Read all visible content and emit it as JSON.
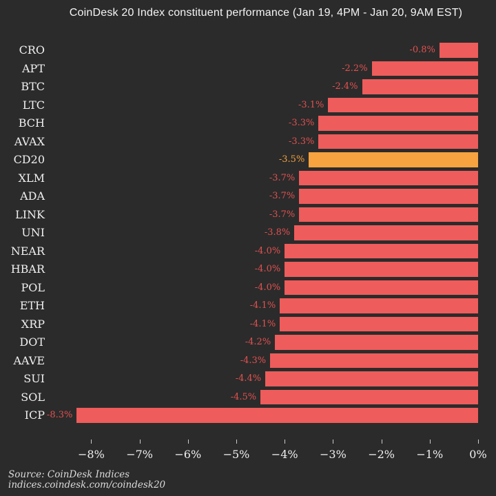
{
  "title": "CoinDesk 20 Index constituent performance (Jan 19, 4PM - Jan 20, 9AM EST)",
  "footer": {
    "source": "Source: CoinDesk Indices",
    "url": "indices.coindesk.com/coindesk20"
  },
  "colors": {
    "background": "#2b2b2b",
    "bar": "#ee5c5b",
    "highlight_bar": "#f6a340",
    "value_label": "#e25150",
    "highlight_value_label": "#f3a13e",
    "text": "#f0f0f0",
    "tick": "#cccccc",
    "footer_text": "#dcdcdc"
  },
  "chart_data": {
    "type": "bar",
    "orientation": "horizontal",
    "title": "CoinDesk 20 Index constituent performance (Jan 19, 4PM - Jan 20, 9AM EST)",
    "categories": [
      "CRO",
      "APT",
      "BTC",
      "LTC",
      "BCH",
      "AVAX",
      "CD20",
      "XLM",
      "ADA",
      "LINK",
      "UNI",
      "NEAR",
      "HBAR",
      "POL",
      "ETH",
      "XRP",
      "DOT",
      "AAVE",
      "SUI",
      "SOL",
      "ICP"
    ],
    "values": [
      -0.8,
      -2.2,
      -2.4,
      -3.1,
      -3.3,
      -3.3,
      -3.5,
      -3.7,
      -3.7,
      -3.7,
      -3.8,
      -4.0,
      -4.0,
      -4.0,
      -4.1,
      -4.1,
      -4.2,
      -4.3,
      -4.4,
      -4.5,
      -8.3
    ],
    "value_labels": [
      "-0.8%",
      "-2.2%",
      "-2.4%",
      "-3.1%",
      "-3.3%",
      "-3.3%",
      "-3.5%",
      "-3.7%",
      "-3.7%",
      "-3.7%",
      "-3.8%",
      "-4.0%",
      "-4.0%",
      "-4.0%",
      "-4.1%",
      "-4.1%",
      "-4.2%",
      "-4.3%",
      "-4.4%",
      "-4.5%",
      "-8.3%"
    ],
    "highlight_category": "CD20",
    "xlabel": "",
    "ylabel": "",
    "xlim": [
      -8.6,
      0
    ],
    "x_tick_labels": [
      "−8%",
      "−7%",
      "−6%",
      "−5%",
      "−4%",
      "−3%",
      "−2%",
      "−1%",
      "0%"
    ],
    "grid": false,
    "legend": false
  }
}
